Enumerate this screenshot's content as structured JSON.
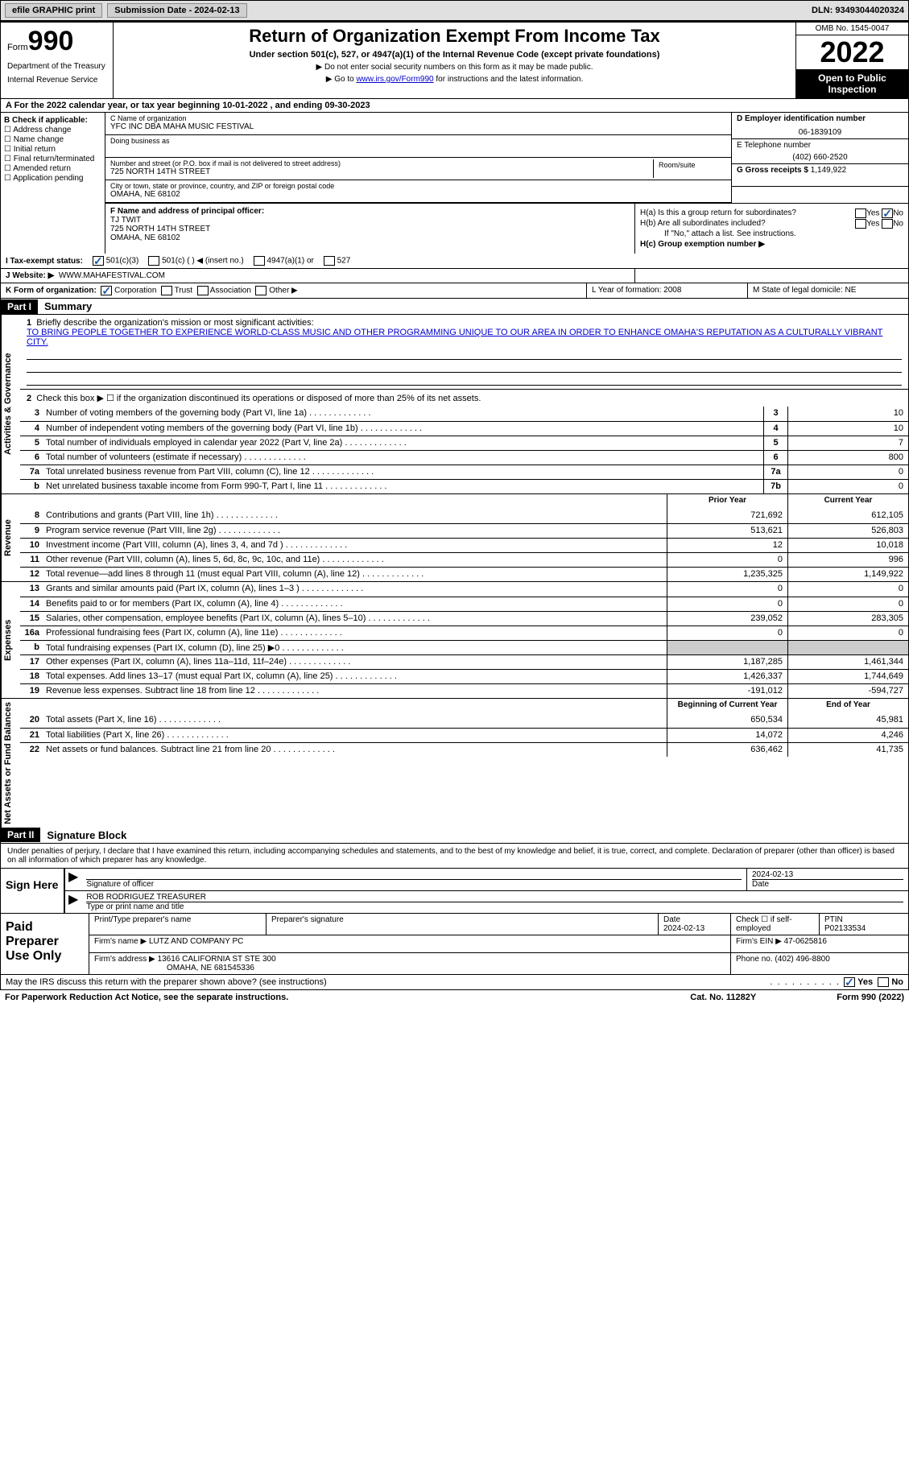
{
  "topbar": {
    "efile": "efile GRAPHIC print",
    "submission": "Submission Date - 2024-02-13",
    "dln": "DLN: 93493044020324"
  },
  "header": {
    "form_word": "Form",
    "form_num": "990",
    "dept": "Department of the Treasury",
    "irs": "Internal Revenue Service",
    "title": "Return of Organization Exempt From Income Tax",
    "subtitle": "Under section 501(c), 527, or 4947(a)(1) of the Internal Revenue Code (except private foundations)",
    "note1": "▶ Do not enter social security numbers on this form as it may be made public.",
    "note2_pre": "▶ Go to ",
    "note2_link": "www.irs.gov/Form990",
    "note2_post": " for instructions and the latest information.",
    "omb": "OMB No. 1545-0047",
    "year": "2022",
    "open": "Open to Public Inspection"
  },
  "row_a": "A For the 2022 calendar year, or tax year beginning 10-01-2022    , and ending 09-30-2023",
  "col_b": {
    "hdr": "B Check if applicable:",
    "items": [
      "Address change",
      "Name change",
      "Initial return",
      "Final return/terminated",
      "Amended return",
      "Application pending"
    ]
  },
  "col_c": {
    "name_lbl": "C Name of organization",
    "name": "YFC INC DBA MAHA MUSIC FESTIVAL",
    "dba_lbl": "Doing business as",
    "dba": "",
    "addr_lbl": "Number and street (or P.O. box if mail is not delivered to street address)",
    "addr": "725 NORTH 14TH STREET",
    "room_lbl": "Room/suite",
    "city_lbl": "City or town, state or province, country, and ZIP or foreign postal code",
    "city": "OMAHA, NE  68102"
  },
  "col_d": {
    "ein_lbl": "D Employer identification number",
    "ein": "06-1839109",
    "tel_lbl": "E Telephone number",
    "tel": "(402) 660-2520",
    "gross_lbl": "G Gross receipts $",
    "gross": "1,149,922"
  },
  "officer": {
    "lbl": "F Name and address of principal officer:",
    "name": "TJ TWIT",
    "addr1": "725 NORTH 14TH STREET",
    "addr2": "OMAHA, NE  68102"
  },
  "h": {
    "ha": "H(a)  Is this a group return for subordinates?",
    "hb": "H(b)  Are all subordinates included?",
    "hb_note": "If \"No,\" attach a list. See instructions.",
    "hc": "H(c)  Group exemption number ▶",
    "yes": "Yes",
    "no": "No"
  },
  "row_i": {
    "lbl": "I    Tax-exempt status:",
    "opts": [
      "501(c)(3)",
      "501(c) (  ) ◀ (insert no.)",
      "4947(a)(1) or",
      "527"
    ]
  },
  "row_j": {
    "lbl": "J   Website: ▶",
    "val": "WWW.MAHAFESTIVAL.COM"
  },
  "row_k": {
    "lbl": "K Form of organization:",
    "opts": [
      "Corporation",
      "Trust",
      "Association",
      "Other ▶"
    ],
    "l": "L Year of formation: 2008",
    "m": "M State of legal domicile: NE"
  },
  "parts": {
    "p1": "Part I",
    "p1_title": "Summary",
    "p2": "Part II",
    "p2_title": "Signature Block"
  },
  "mission": {
    "lbl1": "1",
    "lbl1_txt": "Briefly describe the organization's mission or most significant activities:",
    "txt": "TO BRING PEOPLE TOGETHER TO EXPERIENCE WORLD-CLASS MUSIC AND OTHER PROGRAMMING UNIQUE TO OUR AREA IN ORDER TO ENHANCE OMAHA'S REPUTATION AS A CULTURALLY VIBRANT CITY.",
    "lbl2": "2",
    "lbl2_txt": "Check this box ▶ ☐ if the organization discontinued its operations or disposed of more than 25% of its net assets."
  },
  "vlabels": {
    "gov": "Activities & Governance",
    "rev": "Revenue",
    "exp": "Expenses",
    "net": "Net Assets or Fund Balances"
  },
  "col_hdrs": {
    "prior": "Prior Year",
    "current": "Current Year",
    "begin": "Beginning of Current Year",
    "end": "End of Year"
  },
  "lines_gov": [
    {
      "n": "3",
      "d": "Number of voting members of the governing body (Part VI, line 1a)",
      "box": "3",
      "v": "10"
    },
    {
      "n": "4",
      "d": "Number of independent voting members of the governing body (Part VI, line 1b)",
      "box": "4",
      "v": "10"
    },
    {
      "n": "5",
      "d": "Total number of individuals employed in calendar year 2022 (Part V, line 2a)",
      "box": "5",
      "v": "7"
    },
    {
      "n": "6",
      "d": "Total number of volunteers (estimate if necessary)",
      "box": "6",
      "v": "800"
    },
    {
      "n": "7a",
      "d": "Total unrelated business revenue from Part VIII, column (C), line 12",
      "box": "7a",
      "v": "0"
    },
    {
      "n": "b",
      "d": "Net unrelated business taxable income from Form 990-T, Part I, line 11",
      "box": "7b",
      "v": "0"
    }
  ],
  "lines_rev": [
    {
      "n": "8",
      "d": "Contributions and grants (Part VIII, line 1h)",
      "p": "721,692",
      "c": "612,105"
    },
    {
      "n": "9",
      "d": "Program service revenue (Part VIII, line 2g)",
      "p": "513,621",
      "c": "526,803"
    },
    {
      "n": "10",
      "d": "Investment income (Part VIII, column (A), lines 3, 4, and 7d )",
      "p": "12",
      "c": "10,018"
    },
    {
      "n": "11",
      "d": "Other revenue (Part VIII, column (A), lines 5, 6d, 8c, 9c, 10c, and 11e)",
      "p": "0",
      "c": "996"
    },
    {
      "n": "12",
      "d": "Total revenue—add lines 8 through 11 (must equal Part VIII, column (A), line 12)",
      "p": "1,235,325",
      "c": "1,149,922"
    }
  ],
  "lines_exp": [
    {
      "n": "13",
      "d": "Grants and similar amounts paid (Part IX, column (A), lines 1–3 )",
      "p": "0",
      "c": "0"
    },
    {
      "n": "14",
      "d": "Benefits paid to or for members (Part IX, column (A), line 4)",
      "p": "0",
      "c": "0"
    },
    {
      "n": "15",
      "d": "Salaries, other compensation, employee benefits (Part IX, column (A), lines 5–10)",
      "p": "239,052",
      "c": "283,305"
    },
    {
      "n": "16a",
      "d": "Professional fundraising fees (Part IX, column (A), line 11e)",
      "p": "0",
      "c": "0"
    },
    {
      "n": "b",
      "d": "Total fundraising expenses (Part IX, column (D), line 25) ▶0",
      "p": "shade",
      "c": "shade"
    },
    {
      "n": "17",
      "d": "Other expenses (Part IX, column (A), lines 11a–11d, 11f–24e)",
      "p": "1,187,285",
      "c": "1,461,344"
    },
    {
      "n": "18",
      "d": "Total expenses. Add lines 13–17 (must equal Part IX, column (A), line 25)",
      "p": "1,426,337",
      "c": "1,744,649"
    },
    {
      "n": "19",
      "d": "Revenue less expenses. Subtract line 18 from line 12",
      "p": "-191,012",
      "c": "-594,727"
    }
  ],
  "lines_net": [
    {
      "n": "20",
      "d": "Total assets (Part X, line 16)",
      "p": "650,534",
      "c": "45,981"
    },
    {
      "n": "21",
      "d": "Total liabilities (Part X, line 26)",
      "p": "14,072",
      "c": "4,246"
    },
    {
      "n": "22",
      "d": "Net assets or fund balances. Subtract line 21 from line 20",
      "p": "636,462",
      "c": "41,735"
    }
  ],
  "sig_decl": "Under penalties of perjury, I declare that I have examined this return, including accompanying schedules and statements, and to the best of my knowledge and belief, it is true, correct, and complete. Declaration of preparer (other than officer) is based on all information of which preparer has any knowledge.",
  "sign": {
    "hdr": "Sign Here",
    "sig_lbl": "Signature of officer",
    "date": "2024-02-13",
    "name": "ROB RODRIGUEZ  TREASURER",
    "name_lbl": "Type or print name and title"
  },
  "prep": {
    "hdr": "Paid Preparer Use Only",
    "name_lbl": "Print/Type preparer's name",
    "sig_lbl": "Preparer's signature",
    "date_lbl": "Date",
    "date": "2024-02-13",
    "check_lbl": "Check ☐ if self-employed",
    "ptin_lbl": "PTIN",
    "ptin": "P02133534",
    "firm_lbl": "Firm's name    ▶",
    "firm": "LUTZ AND COMPANY PC",
    "ein_lbl": "Firm's EIN ▶",
    "ein": "47-0625816",
    "addr_lbl": "Firm's address ▶",
    "addr1": "13616 CALIFORNIA ST STE 300",
    "addr2": "OMAHA, NE  681545336",
    "phone_lbl": "Phone no.",
    "phone": "(402) 496-8800"
  },
  "footer_q": "May the IRS discuss this return with the preparer shown above? (see instructions)",
  "footer": {
    "left": "For Paperwork Reduction Act Notice, see the separate instructions.",
    "mid": "Cat. No. 11282Y",
    "right": "Form 990 (2022)"
  }
}
